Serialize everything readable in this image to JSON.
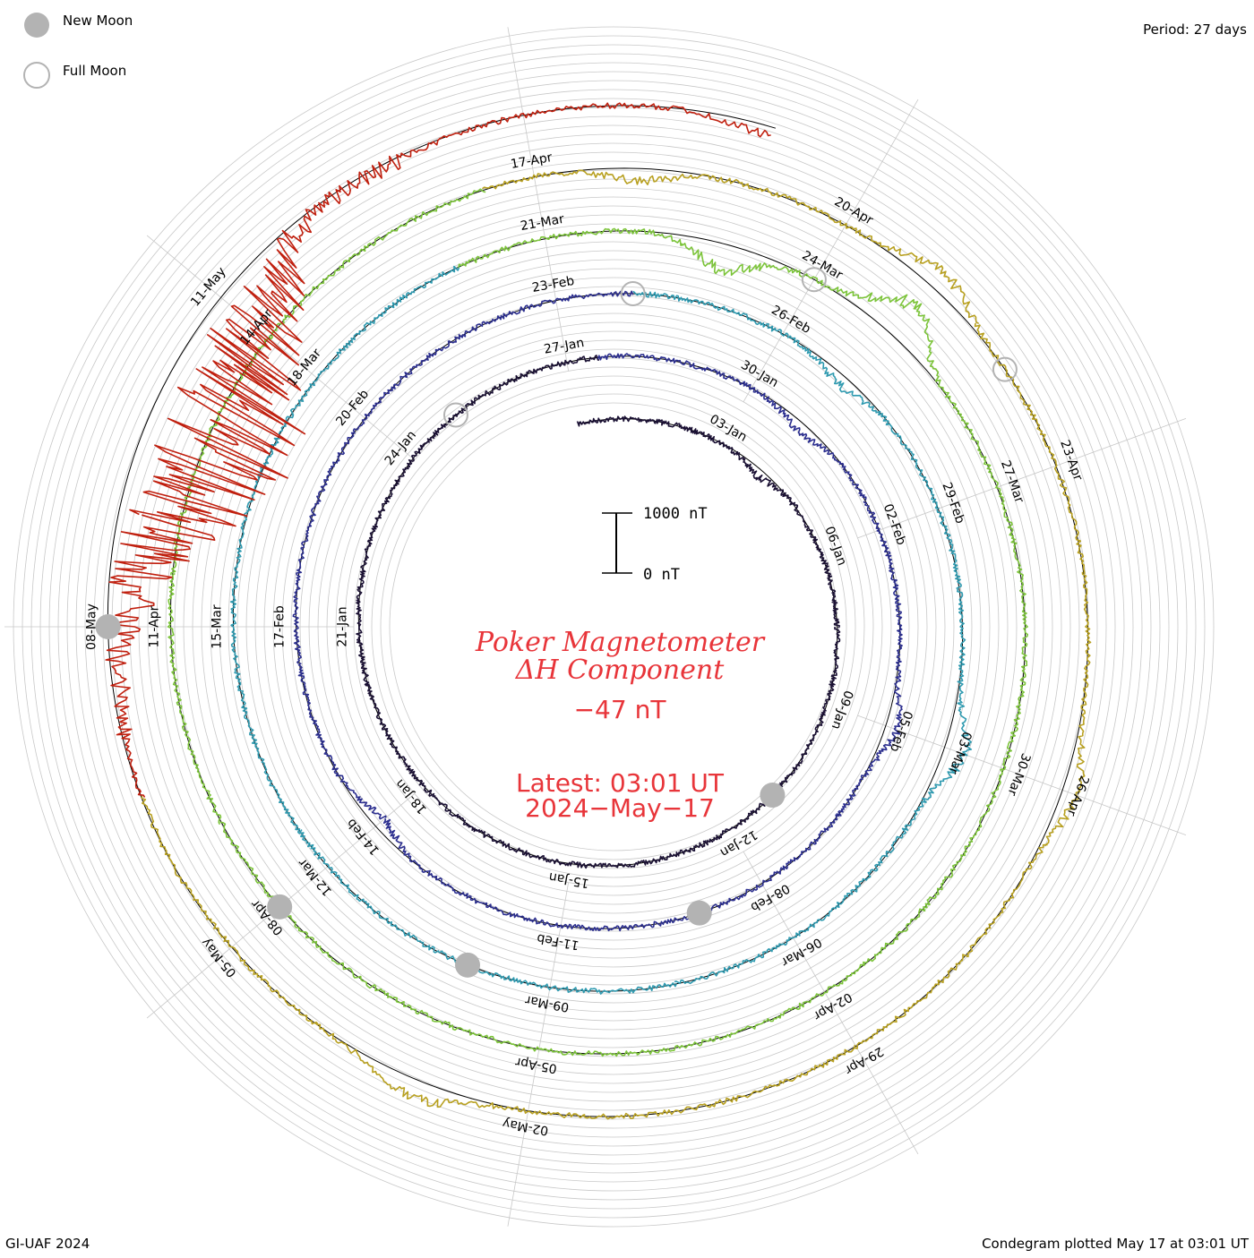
{
  "legend": {
    "new_moon": "New Moon",
    "full_moon": "Full Moon"
  },
  "period_label": "Period: 27 days",
  "footer_left": "GI-UAF 2024",
  "footer_right": "Condegram plotted May 17 at 03:01 UT",
  "title_line1": "Poker Magnetometer",
  "title_line2": "ΔH Component",
  "current_value": "−47 nT",
  "latest_time": "Latest: 03:01 UT",
  "latest_date": "2024−May−17",
  "scale_bar": {
    "top_label": "1000 nT",
    "bottom_label": "0 nT"
  },
  "colors": {
    "ring1": "#1a1033",
    "ring2": "#2c2f8f",
    "ring3": "#2f9ab0",
    "ring4": "#7cc43a",
    "ring5": "#b8a020",
    "ring6": "#c26a10",
    "ring_storm": "#c01f0e",
    "accent": "#e8353a",
    "moon_new": "#b3b3b3",
    "grid": "#c8c8c8"
  },
  "chart_data": {
    "type": "line",
    "subtype": "condegram-spiral",
    "period_days": 27,
    "scale_nT": [
      0,
      1000
    ],
    "current_nT": -47,
    "date_labels": [
      {
        "text": "03-Jan",
        "day": 3
      },
      {
        "text": "06-Jan",
        "day": 6
      },
      {
        "text": "09-Jan",
        "day": 9
      },
      {
        "text": "12-Jan",
        "day": 12
      },
      {
        "text": "15-Jan",
        "day": 15
      },
      {
        "text": "18-Jan",
        "day": 18
      },
      {
        "text": "21-Jan",
        "day": 21
      },
      {
        "text": "24-Jan",
        "day": 24
      },
      {
        "text": "27-Jan",
        "day": 27
      },
      {
        "text": "30-Jan",
        "day": 30
      },
      {
        "text": "02-Feb",
        "day": 33
      },
      {
        "text": "05-Feb",
        "day": 36
      },
      {
        "text": "08-Feb",
        "day": 39
      },
      {
        "text": "11-Feb",
        "day": 42
      },
      {
        "text": "14-Feb",
        "day": 45
      },
      {
        "text": "17-Feb",
        "day": 48
      },
      {
        "text": "20-Feb",
        "day": 51
      },
      {
        "text": "23-Feb",
        "day": 54
      },
      {
        "text": "26-Feb",
        "day": 57
      },
      {
        "text": "29-Feb",
        "day": 60
      },
      {
        "text": "03-Mar",
        "day": 63
      },
      {
        "text": "06-Mar",
        "day": 66
      },
      {
        "text": "09-Mar",
        "day": 69
      },
      {
        "text": "12-Mar",
        "day": 72
      },
      {
        "text": "15-Mar",
        "day": 75
      },
      {
        "text": "18-Mar",
        "day": 78
      },
      {
        "text": "21-Mar",
        "day": 81
      },
      {
        "text": "24-Mar",
        "day": 84
      },
      {
        "text": "27-Mar",
        "day": 87
      },
      {
        "text": "30-Mar",
        "day": 90
      },
      {
        "text": "02-Apr",
        "day": 93
      },
      {
        "text": "05-Apr",
        "day": 96
      },
      {
        "text": "08-Apr",
        "day": 99
      },
      {
        "text": "11-Apr",
        "day": 102
      },
      {
        "text": "14-Apr",
        "day": 105
      },
      {
        "text": "17-Apr",
        "day": 108
      },
      {
        "text": "20-Apr",
        "day": 111
      },
      {
        "text": "23-Apr",
        "day": 114
      },
      {
        "text": "26-Apr",
        "day": 117
      },
      {
        "text": "29-Apr",
        "day": 120
      },
      {
        "text": "02-May",
        "day": 123
      },
      {
        "text": "05-May",
        "day": 126
      },
      {
        "text": "08-May",
        "day": 129
      },
      {
        "text": "11-May",
        "day": 132
      }
    ],
    "new_moon_days": [
      11,
      40,
      70,
      99,
      129
    ],
    "full_moon_days": [
      25,
      55,
      84,
      113
    ],
    "disturbance_nT": [
      {
        "day": 4,
        "value": 120
      },
      {
        "day": 31,
        "value": 150
      },
      {
        "day": 36,
        "value": -200
      },
      {
        "day": 45,
        "value": 180
      },
      {
        "day": 58,
        "value": 160
      },
      {
        "day": 63,
        "value": -350
      },
      {
        "day": 83,
        "value": 420
      },
      {
        "day": 85,
        "value": -600
      },
      {
        "day": 109,
        "value": 200
      },
      {
        "day": 112,
        "value": -300
      },
      {
        "day": 117,
        "value": -250
      },
      {
        "day": 124,
        "value": -300
      },
      {
        "day": 131,
        "value": 1400
      },
      {
        "day": 133,
        "value": -200
      },
      {
        "day": 137,
        "value": 150
      }
    ]
  }
}
